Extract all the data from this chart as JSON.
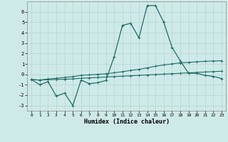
{
  "xlabel": "Humidex (Indice chaleur)",
  "background_color": "#ceeae8",
  "grid_color": "#b8d4d2",
  "line_color": "#1e6b65",
  "x": [
    0,
    1,
    2,
    3,
    4,
    5,
    6,
    7,
    8,
    9,
    10,
    11,
    12,
    13,
    14,
    15,
    16,
    17,
    18,
    19,
    20,
    21,
    22,
    23
  ],
  "line1": [
    -0.5,
    -1.0,
    -0.7,
    -2.1,
    -1.8,
    -3.0,
    -0.55,
    -0.9,
    -0.8,
    -0.6,
    1.7,
    4.7,
    4.9,
    3.5,
    6.6,
    6.6,
    5.0,
    2.6,
    1.3,
    0.1,
    0.1,
    -0.1,
    -0.2,
    -0.4
  ],
  "line2": [
    -0.5,
    -0.55,
    -0.45,
    -0.38,
    -0.3,
    -0.22,
    -0.1,
    -0.05,
    0.0,
    0.05,
    0.15,
    0.25,
    0.38,
    0.48,
    0.62,
    0.78,
    0.9,
    1.0,
    1.1,
    1.15,
    1.2,
    1.25,
    1.28,
    1.3
  ],
  "line3": [
    -0.5,
    -0.55,
    -0.52,
    -0.5,
    -0.47,
    -0.44,
    -0.38,
    -0.34,
    -0.3,
    -0.26,
    -0.22,
    -0.18,
    -0.14,
    -0.1,
    -0.06,
    -0.02,
    0.02,
    0.06,
    0.1,
    0.14,
    0.18,
    0.22,
    0.26,
    0.3
  ],
  "ylim": [
    -3.5,
    7.0
  ],
  "yticks": [
    -3,
    -2,
    -1,
    0,
    1,
    2,
    3,
    4,
    5,
    6
  ],
  "xticks": [
    0,
    1,
    2,
    3,
    4,
    5,
    6,
    7,
    8,
    9,
    10,
    11,
    12,
    13,
    14,
    15,
    16,
    17,
    18,
    19,
    20,
    21,
    22,
    23
  ]
}
